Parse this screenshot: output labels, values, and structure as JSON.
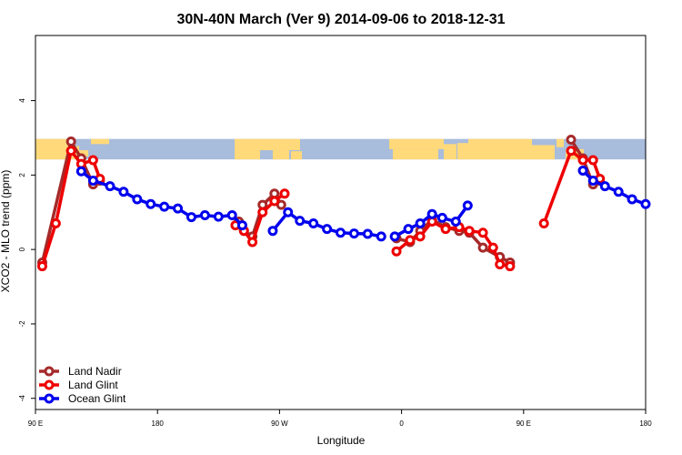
{
  "colors": {
    "land_nadir": "#a52a2a",
    "land_glint": "#ee0000",
    "ocean_glint": "#0000ee",
    "map_ocean": "#a8bcdc",
    "map_land": "#ffd97a"
  },
  "chart_data": {
    "type": "line",
    "title": "30N-40N March (Ver 9)   2014-09-06 to 2018-12-31",
    "xlabel": "Longitude",
    "ylabel": "XCO2 - MLO trend (ppm)",
    "xlim": [
      90,
      450
    ],
    "ylim": [
      -4.3,
      5.75
    ],
    "x_ticks": [
      {
        "value": 90,
        "label": "90 E"
      },
      {
        "value": 162,
        "label": "180"
      },
      {
        "value": 234,
        "label": "90 W"
      },
      {
        "value": 306,
        "label": "0"
      },
      {
        "value": 378,
        "label": "90 E"
      },
      {
        "value": 450,
        "label": "180"
      }
    ],
    "y_ticks": [
      {
        "value": -4,
        "label": "-4"
      },
      {
        "value": -2,
        "label": "-2"
      },
      {
        "value": 0,
        "label": "0"
      },
      {
        "value": 2,
        "label": "2"
      },
      {
        "value": 4,
        "label": "4"
      }
    ],
    "legend_position": "bottom-left",
    "map_strip": {
      "y_from": 2.42,
      "y_to": 2.97
    },
    "series": [
      {
        "name": "Land Nadir",
        "color_key": "land_nadir",
        "segments": [
          [
            [
              94,
              -0.35
            ],
            [
              111,
              2.9
            ],
            [
              117,
              2.45
            ],
            [
              124,
              1.75
            ],
            [
              128,
              1.85
            ]
          ],
          [
            [
              210,
              0.75
            ],
            [
              213,
              0.5
            ],
            [
              218,
              0.35
            ],
            [
              224,
              1.2
            ],
            [
              231,
              1.5
            ],
            [
              235,
              1.2
            ]
          ],
          [
            [
              303,
              0.3
            ],
            [
              311,
              0.2
            ],
            [
              317,
              0.5
            ],
            [
              324,
              0.8
            ],
            [
              332,
              0.6
            ],
            [
              340,
              0.5
            ],
            [
              346,
              0.45
            ],
            [
              354,
              0.05
            ],
            [
              364,
              -0.2
            ],
            [
              370,
              -0.35
            ]
          ],
          [
            [
              406,
              2.95
            ],
            [
              413,
              2.45
            ],
            [
              419,
              1.75
            ],
            [
              423,
              1.85
            ]
          ]
        ]
      },
      {
        "name": "Land Glint",
        "color_key": "land_glint",
        "segments": [
          [
            [
              94,
              -0.45
            ],
            [
              102,
              0.7
            ],
            [
              111,
              2.65
            ],
            [
              117,
              2.3
            ],
            [
              124,
              2.4
            ],
            [
              128,
              1.9
            ]
          ],
          [
            [
              208,
              0.65
            ],
            [
              213,
              0.5
            ],
            [
              218,
              0.2
            ],
            [
              224,
              1.0
            ],
            [
              231,
              1.3
            ],
            [
              237,
              1.5
            ]
          ],
          [
            [
              303,
              -0.05
            ],
            [
              311,
              0.25
            ],
            [
              317,
              0.35
            ],
            [
              324,
              0.75
            ],
            [
              332,
              0.55
            ],
            [
              340,
              0.6
            ],
            [
              346,
              0.5
            ],
            [
              354,
              0.45
            ],
            [
              360,
              0.05
            ],
            [
              364,
              -0.4
            ],
            [
              370,
              -0.45
            ]
          ],
          [
            [
              390,
              0.7
            ],
            [
              406,
              2.65
            ],
            [
              413,
              2.4
            ],
            [
              419,
              2.4
            ],
            [
              423,
              1.9
            ]
          ]
        ]
      },
      {
        "name": "Ocean Glint",
        "color_key": "ocean_glint",
        "segments": [
          [
            [
              117,
              2.1
            ],
            [
              124,
              1.85
            ],
            [
              134,
              1.7
            ],
            [
              142,
              1.55
            ],
            [
              150,
              1.35
            ],
            [
              158,
              1.22
            ],
            [
              166,
              1.15
            ],
            [
              174,
              1.1
            ],
            [
              182,
              0.87
            ],
            [
              190,
              0.92
            ],
            [
              198,
              0.88
            ],
            [
              206,
              0.92
            ],
            [
              212,
              0.65
            ]
          ],
          [
            [
              230,
              0.5
            ],
            [
              239,
              1.0
            ],
            [
              246,
              0.77
            ],
            [
              254,
              0.7
            ],
            [
              262,
              0.55
            ],
            [
              270,
              0.45
            ],
            [
              278,
              0.43
            ],
            [
              286,
              0.42
            ],
            [
              294,
              0.35
            ]
          ],
          [
            [
              302,
              0.35
            ],
            [
              310,
              0.55
            ],
            [
              317,
              0.7
            ],
            [
              324,
              0.95
            ],
            [
              330,
              0.85
            ],
            [
              338,
              0.75
            ],
            [
              345,
              1.18
            ]
          ],
          [
            [
              413,
              2.12
            ],
            [
              419,
              1.85
            ],
            [
              426,
              1.7
            ],
            [
              434,
              1.55
            ],
            [
              442,
              1.35
            ],
            [
              450,
              1.22
            ]
          ]
        ]
      }
    ]
  }
}
